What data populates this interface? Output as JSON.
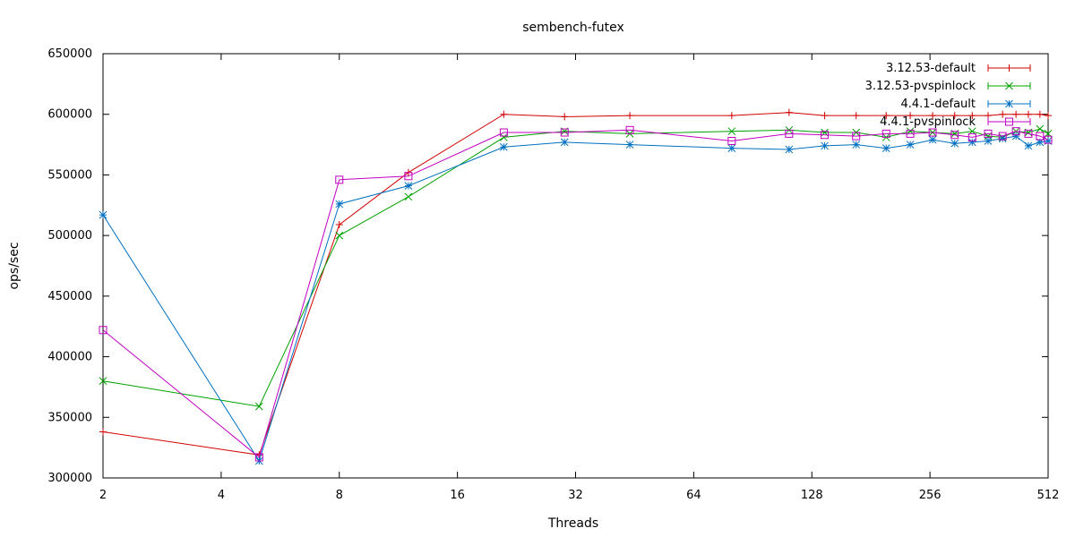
{
  "chart_data": {
    "type": "line",
    "title": "sembench-futex",
    "xlabel": "Threads",
    "ylabel": "ops/sec",
    "x_scale": "log2",
    "xlim": [
      2,
      512
    ],
    "ylim": [
      300000,
      650000
    ],
    "xticks": [
      2,
      4,
      8,
      16,
      32,
      64,
      128,
      256,
      512
    ],
    "yticks": [
      300000,
      350000,
      400000,
      450000,
      500000,
      550000,
      600000,
      650000
    ],
    "grid": false,
    "legend_position": "top-right",
    "series": [
      {
        "name": "3.12.53-default",
        "color": "#d00000",
        "marker": "plus",
        "x": [
          2,
          5,
          8,
          12,
          21,
          30,
          44,
          80,
          112,
          138,
          166,
          198,
          228,
          260,
          296,
          328,
          360,
          392,
          424,
          456,
          488,
          512
        ],
        "y": [
          338000,
          319000,
          509000,
          552000,
          600000,
          598000,
          599000,
          599000,
          601500,
          599000,
          599000,
          599000,
          599000,
          599000,
          599000,
          599000,
          599000,
          600000,
          600000,
          600000,
          600000,
          599000
        ]
      },
      {
        "name": "3.12.53-pvspinlock",
        "color": "#00a000",
        "marker": "cross",
        "x": [
          2,
          5,
          8,
          12,
          21,
          30,
          44,
          80,
          112,
          138,
          166,
          198,
          228,
          260,
          296,
          328,
          360,
          392,
          424,
          456,
          488,
          512
        ],
        "y": [
          380000,
          359000,
          500000,
          532000,
          581000,
          586000,
          584000,
          586000,
          587000,
          585000,
          585000,
          581000,
          586000,
          585000,
          584000,
          586000,
          582000,
          581000,
          586000,
          585000,
          588000,
          584000
        ]
      },
      {
        "name": "4.4.1-default",
        "color": "#0070c0",
        "marker": "star",
        "x": [
          2,
          5,
          8,
          12,
          21,
          30,
          44,
          80,
          112,
          138,
          166,
          198,
          228,
          260,
          296,
          328,
          360,
          392,
          424,
          456,
          488,
          512
        ],
        "y": [
          517000,
          314000,
          526000,
          541000,
          573000,
          577000,
          575000,
          572000,
          571000,
          574000,
          575000,
          572000,
          575000,
          579000,
          576000,
          577000,
          578000,
          580000,
          582000,
          574000,
          577000,
          578000
        ]
      },
      {
        "name": "4.4.1-pvspinlock",
        "color": "#c000c0",
        "marker": "open-square",
        "x": [
          2,
          5,
          8,
          12,
          21,
          30,
          44,
          80,
          112,
          138,
          166,
          198,
          228,
          260,
          296,
          328,
          360,
          392,
          424,
          456,
          488,
          512
        ],
        "y": [
          422000,
          317000,
          546000,
          549000,
          585000,
          585000,
          587000,
          578000,
          584000,
          583000,
          582000,
          584000,
          584000,
          585000,
          583000,
          581000,
          584000,
          582000,
          586000,
          584000,
          582000,
          579000
        ]
      }
    ]
  }
}
